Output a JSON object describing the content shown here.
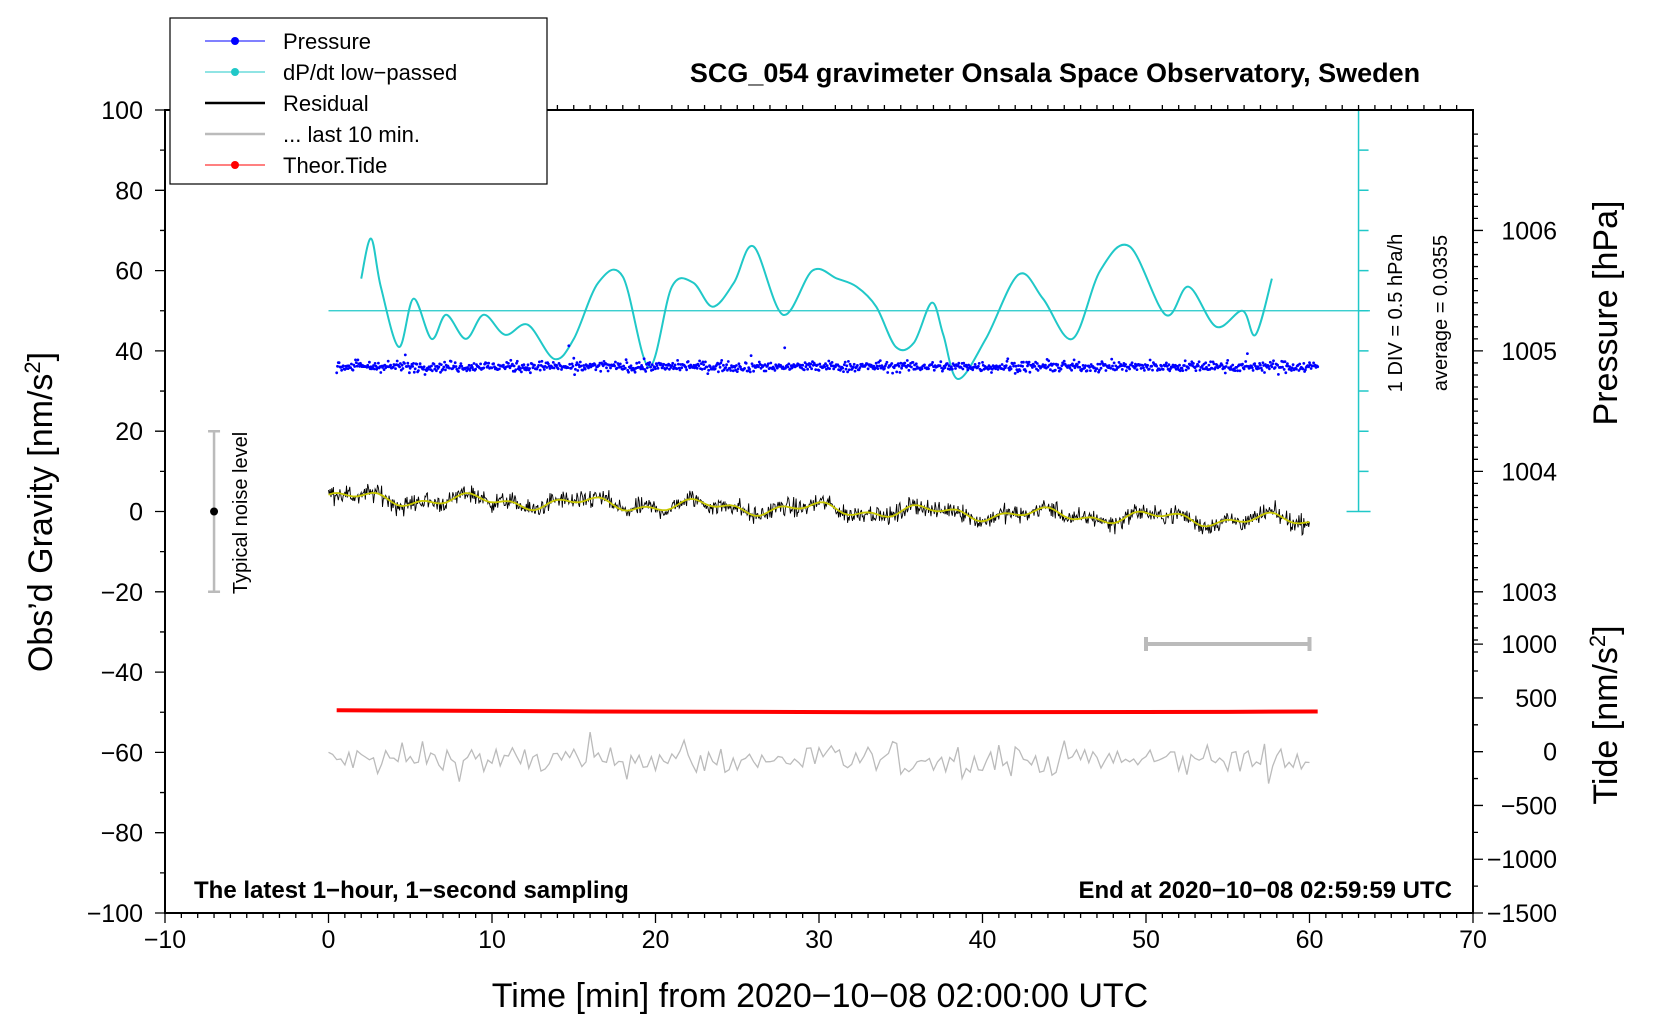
{
  "chart_data": {
    "type": "line",
    "title": "SCG_054 gravimeter Onsala Space Observatory, Sweden",
    "xlabel": "Time [min] from 2020−10−08 02:00:00 UTC",
    "ylabel_left": "Obs’d Gravity [nm/s²]",
    "ylabel_pressure_text": "Pressure [hPa]",
    "ylabel_tide_text": "Tide [nm/s²]",
    "xlim": [
      -10,
      70
    ],
    "ylim": [
      -100,
      100
    ],
    "x_ticks": [
      -10,
      0,
      10,
      20,
      30,
      40,
      50,
      60,
      70
    ],
    "x_tick_labels": [
      "−10",
      "0",
      "10",
      "20",
      "30",
      "40",
      "50",
      "60",
      "70"
    ],
    "y_ticks": [
      -100,
      -80,
      -60,
      -40,
      -20,
      0,
      20,
      40,
      60,
      80,
      100
    ],
    "y_tick_labels": [
      "−100",
      "−80",
      "−60",
      "−40",
      "−20",
      "0",
      "20",
      "40",
      "60",
      "80",
      "100"
    ],
    "pressure_axis": {
      "ticks": [
        1003,
        1004,
        1005,
        1006
      ],
      "tick_labels": [
        "1003",
        "1004",
        "1005",
        "1006"
      ],
      "ylim": [
        1000.3333,
        1007.0
      ]
    },
    "tide_axis": {
      "ticks": [
        -1500,
        -1000,
        -500,
        0,
        500,
        1000
      ],
      "tick_labels": [
        "−1500",
        "−1000",
        "−500",
        "0",
        "500",
        "1000"
      ],
      "ylim": [
        -1500,
        5967
      ]
    },
    "legend": [
      {
        "label": "Pressure",
        "color": "#0000ff",
        "marker": true
      },
      {
        "label": "dP/dt low−passed",
        "color": "#20c8c8",
        "marker": true
      },
      {
        "label": "Residual",
        "color": "#000000",
        "marker": false
      },
      {
        "label": "... last 10 min.",
        "color": "#bbbbbb",
        "marker": false
      },
      {
        "label": "Theor.Tide",
        "color": "#ff0000",
        "marker": true
      }
    ],
    "series": [
      {
        "name": "Pressure",
        "color": "#0000ff",
        "level_hPa": 1004.87,
        "axis": "pressure"
      },
      {
        "name": "dP/dt low−passed",
        "color": "#20c8c8",
        "axis": "left",
        "zero_line": 50,
        "x": [
          2,
          2.6,
          3.2,
          4.3,
          5.2,
          6.3,
          7.2,
          8.4,
          9.5,
          10.8,
          12.2,
          13.8,
          15.0,
          16.5,
          18.0,
          19.6,
          21.0,
          22.3,
          23.5,
          24.8,
          26.0,
          27.8,
          29.6,
          31.1,
          32.3,
          33.5,
          34.7,
          35.8,
          36.9,
          37.6,
          38.5,
          40.2,
          42.2,
          43.7,
          45.5,
          47.2,
          49.0,
          51.2,
          52.6,
          54.3,
          55.9,
          56.7,
          57.7
        ],
        "y": [
          58,
          68,
          56,
          41,
          53,
          43,
          49,
          43,
          49,
          44,
          46.5,
          38,
          43,
          57,
          58.5,
          36,
          56,
          57,
          51,
          57,
          66,
          49,
          60,
          58,
          56,
          51,
          41,
          42,
          52,
          44,
          33,
          43,
          59,
          53,
          43,
          60,
          66,
          49,
          56,
          46,
          50,
          44,
          58
        ]
      },
      {
        "name": "Residual",
        "color": "#000000",
        "axis": "left",
        "x_start": 0,
        "x_end": 60,
        "start_value": 3.5,
        "end_value": -2.5
      },
      {
        "name": "... last 10 min.",
        "color": "#bbbbbb",
        "axis": "left",
        "x_start": 0,
        "x_end": 60,
        "mean_value": -62
      },
      {
        "name": "Theor.Tide",
        "color": "#ff0000",
        "axis": "left",
        "x": [
          0.5,
          6,
          16,
          33.5,
          55,
          60.5
        ],
        "y": [
          -49.5,
          -49.6,
          -49.8,
          -50.0,
          -49.9,
          -49.8
        ]
      }
    ],
    "dpdt_scale_label": "1 DIV = 0.5 hPa/h",
    "dpdt_average_label": "average = 0.0355",
    "noise_bar_label": "Typical noise level",
    "noise_bar": {
      "x": -7,
      "center": 0,
      "low": -20,
      "high": 20
    },
    "grey_scale_bar": {
      "x_start": 50,
      "x_end": 60,
      "y": -33
    },
    "footer_left": "The latest 1−hour, 1−second sampling",
    "footer_right": "End at 2020−10−08 02:59:59 UTC",
    "colors": {
      "pressure": "#0000ff",
      "dpdt": "#20c8c8",
      "residual": "#000000",
      "smooth": "#c8c800",
      "last10": "#bbbbbb",
      "tide": "#ff0000",
      "noise_bar": "#bbbbbb"
    }
  }
}
